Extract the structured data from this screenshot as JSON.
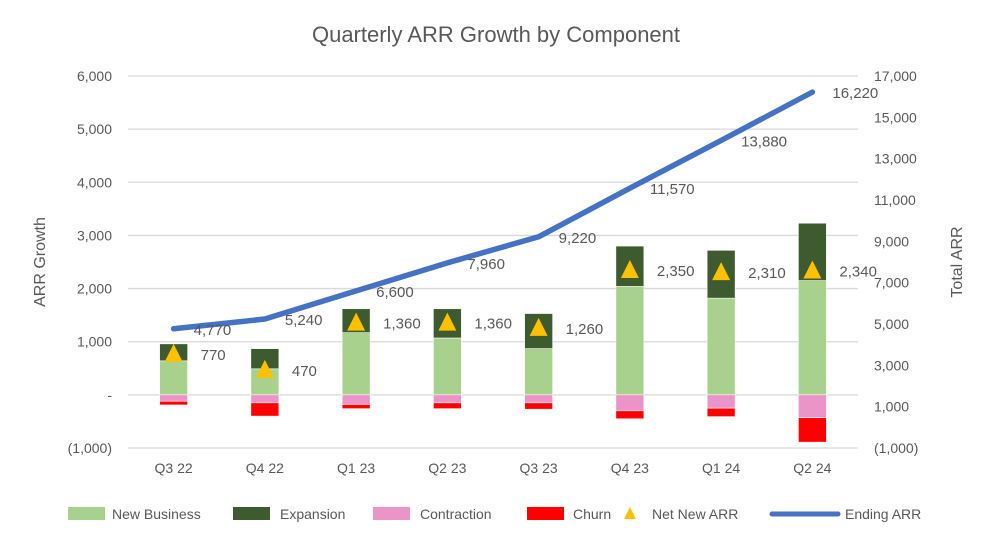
{
  "chart_data": {
    "type": "bar",
    "subtype": "stacked bar with line on secondary axis",
    "title": "Quarterly ARR Growth by Component",
    "ylabel": "ARR Growth",
    "y2label": "Total ARR",
    "ylim": [
      -1000,
      6000
    ],
    "y2lim": [
      -1000,
      17000
    ],
    "yticks": [
      "6,000",
      "5,000",
      "4,000",
      "3,000",
      "2,000",
      "1,000",
      "-",
      "(1,000)"
    ],
    "yticks_values": [
      6000,
      5000,
      4000,
      3000,
      2000,
      1000,
      0,
      -1000
    ],
    "y2ticks": [
      "17,000",
      "15,000",
      "13,000",
      "11,000",
      "9,000",
      "7,000",
      "5,000",
      "3,000",
      "1,000",
      "(1,000)"
    ],
    "y2ticks_values": [
      17000,
      15000,
      13000,
      11000,
      9000,
      7000,
      5000,
      3000,
      1000,
      -1000
    ],
    "grid": true,
    "legend_position": "bottom",
    "categories": [
      "Q3 22",
      "Q4 22",
      "Q1 23",
      "Q2 23",
      "Q3 23",
      "Q4 23",
      "Q1 24",
      "Q2 24"
    ],
    "series": [
      {
        "name": "New Business",
        "kind": "bar",
        "color": "#a9d18e",
        "values": [
          640,
          490,
          1170,
          1070,
          870,
          2040,
          1820,
          2150
        ]
      },
      {
        "name": "Expansion",
        "kind": "bar",
        "color": "#3e5a2f",
        "values": [
          320,
          380,
          450,
          550,
          660,
          760,
          900,
          1080
        ]
      },
      {
        "name": "Contraction",
        "kind": "bar",
        "color": "#ea94c8",
        "values": [
          -120,
          -150,
          -180,
          -150,
          -150,
          -300,
          -250,
          -430
        ]
      },
      {
        "name": "Churn",
        "kind": "bar",
        "color": "#ff0000",
        "values": [
          -70,
          -250,
          -80,
          -110,
          -120,
          -150,
          -160,
          -460
        ]
      },
      {
        "name": "Net New ARR",
        "kind": "marker",
        "color": "#ffc000",
        "values": [
          770,
          470,
          1360,
          1360,
          1260,
          2350,
          2310,
          2340
        ],
        "labels": [
          "770",
          "470",
          "1,360",
          "1,360",
          "1,260",
          "2,350",
          "2,310",
          "2,340"
        ]
      },
      {
        "name": "Ending ARR",
        "kind": "line",
        "axis": "secondary",
        "color": "#4472c4",
        "values": [
          4770,
          5240,
          6600,
          7960,
          9220,
          11570,
          13880,
          16220
        ],
        "labels": [
          "4,770",
          "5,240",
          "6,600",
          "7,960",
          "9,220",
          "11,570",
          "13,880",
          "16,220"
        ]
      }
    ]
  }
}
